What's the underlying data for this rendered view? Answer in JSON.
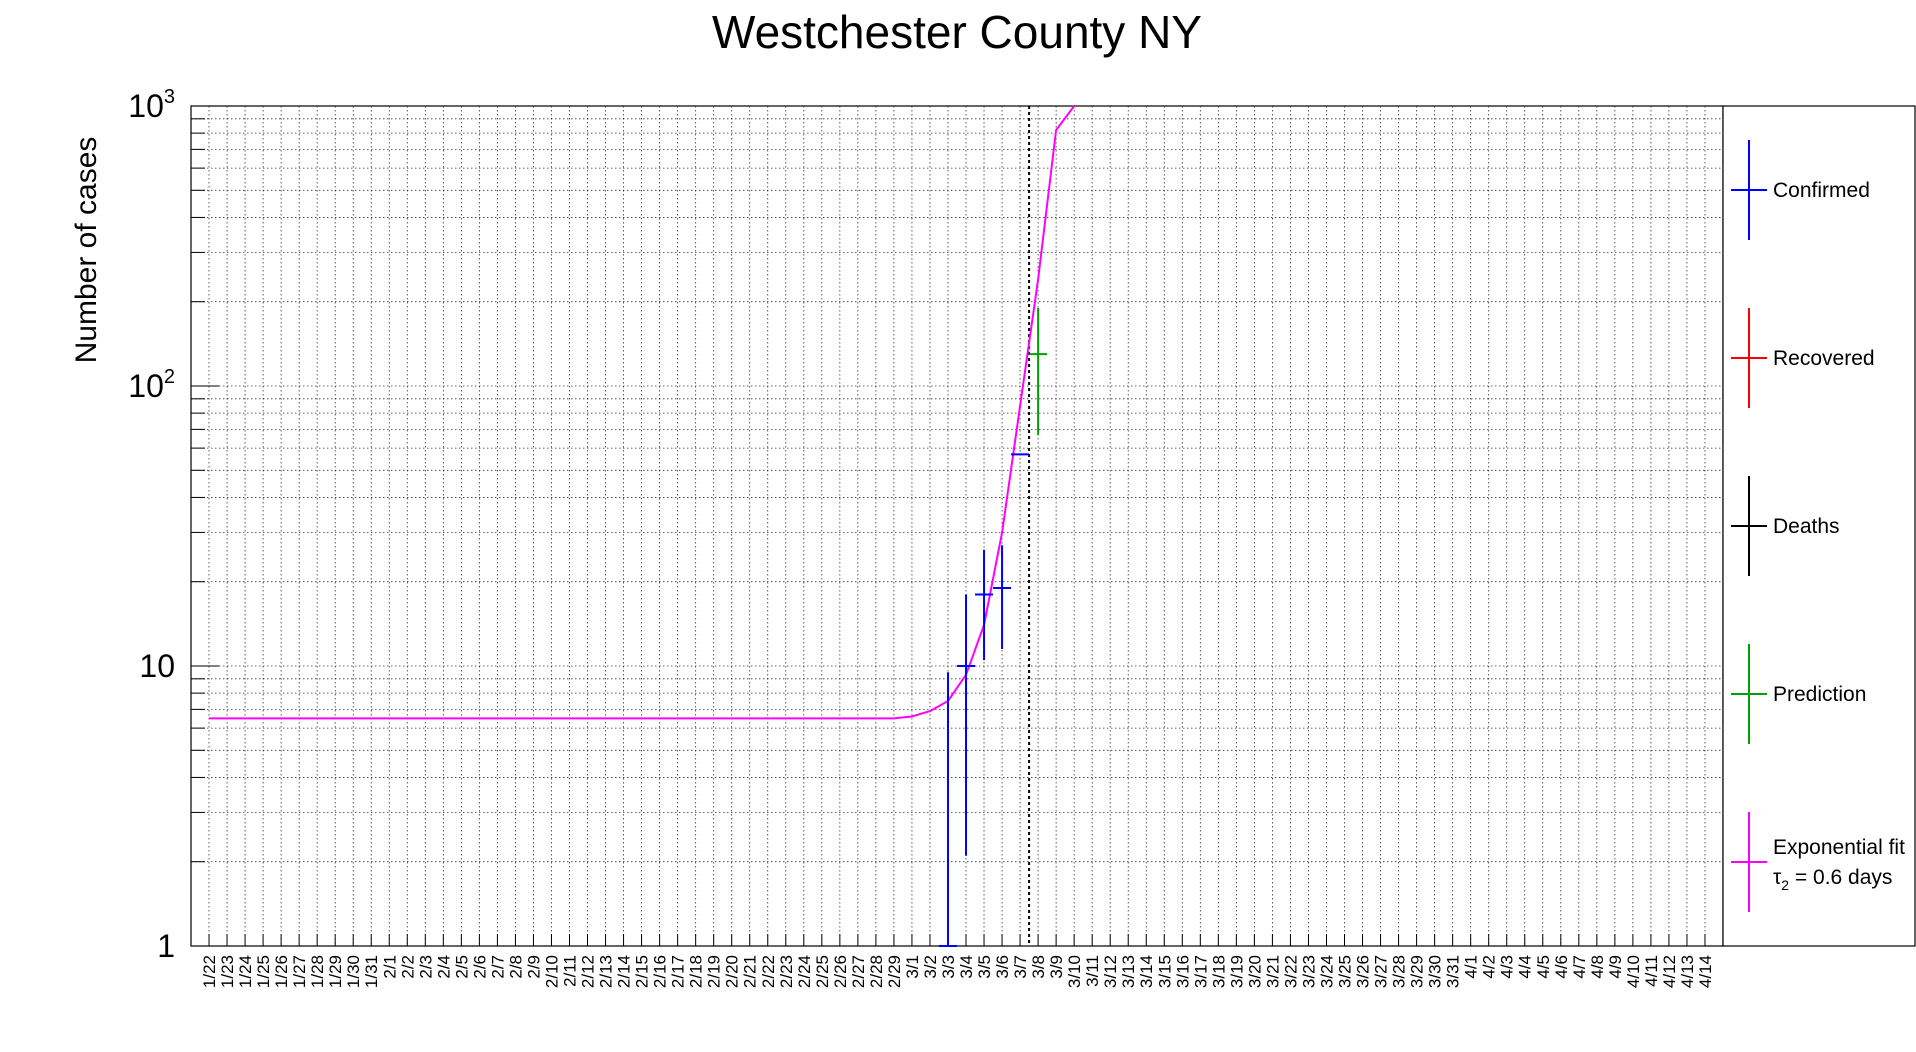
{
  "chart_data": {
    "type": "scatter",
    "title": "Westchester County NY",
    "ylabel": "Number of cases",
    "xlabel": "",
    "yscale": "log",
    "ylim": [
      1,
      1000
    ],
    "y_ticks": [
      {
        "value": 1,
        "base": "1",
        "exp": ""
      },
      {
        "value": 10,
        "base": "10",
        "exp": ""
      },
      {
        "value": 100,
        "base": "10",
        "exp": "2"
      },
      {
        "value": 1000,
        "base": "10",
        "exp": "3"
      }
    ],
    "grid": true,
    "legend_position": "right",
    "categories": [
      "1/22",
      "1/23",
      "1/24",
      "1/25",
      "1/26",
      "1/27",
      "1/28",
      "1/29",
      "1/30",
      "1/31",
      "2/1",
      "2/2",
      "2/3",
      "2/4",
      "2/5",
      "2/6",
      "2/7",
      "2/8",
      "2/9",
      "2/10",
      "2/11",
      "2/12",
      "2/13",
      "2/14",
      "2/15",
      "2/16",
      "2/17",
      "2/18",
      "2/19",
      "2/20",
      "2/21",
      "2/22",
      "2/23",
      "2/24",
      "2/25",
      "2/26",
      "2/27",
      "2/28",
      "2/29",
      "3/1",
      "3/2",
      "3/3",
      "3/4",
      "3/5",
      "3/6",
      "3/7",
      "3/8",
      "3/9",
      "3/10",
      "3/11",
      "3/12",
      "3/13",
      "3/14",
      "3/15",
      "3/16",
      "3/17",
      "3/18",
      "3/19",
      "3/20",
      "3/21",
      "3/22",
      "3/23",
      "3/24",
      "3/25",
      "3/26",
      "3/27",
      "3/28",
      "3/29",
      "3/30",
      "3/31",
      "4/1",
      "4/2",
      "4/3",
      "4/4",
      "4/5",
      "4/6",
      "4/7",
      "4/8",
      "4/9",
      "4/10",
      "4/11",
      "4/12",
      "4/13",
      "4/14"
    ],
    "vertical_marker": "3/8",
    "series": [
      {
        "name": "Confirmed",
        "color": "#0000ff",
        "points": [
          {
            "x": "3/3",
            "y": 1,
            "lo": 1,
            "hi": 9.5
          },
          {
            "x": "3/4",
            "y": 10,
            "lo": 2.1,
            "hi": 18
          },
          {
            "x": "3/5",
            "y": 18,
            "lo": 10.5,
            "hi": 26
          },
          {
            "x": "3/6",
            "y": 19,
            "lo": 11.5,
            "hi": 27
          },
          {
            "x": "3/7",
            "y": 57,
            "lo": 57,
            "hi": 57
          }
        ]
      },
      {
        "name": "Recovered",
        "color": "#ff0000",
        "points": []
      },
      {
        "name": "Deaths",
        "color": "#000000",
        "points": []
      },
      {
        "name": "Prediction",
        "color": "#00a000",
        "points": [
          {
            "x": "3/8",
            "y": 130,
            "lo": 67,
            "hi": 190
          }
        ]
      }
    ],
    "fit": {
      "name": "Exponential fit",
      "tau_label": "τ",
      "tau_sub": "2",
      "tau_text": " = 0.6 days",
      "color": "#ff00ff",
      "baseline": 6.5,
      "points": [
        {
          "x": "1/22",
          "y": 6.5
        },
        {
          "x": "2/29",
          "y": 6.5
        },
        {
          "x": "3/1",
          "y": 6.6
        },
        {
          "x": "3/2",
          "y": 6.9
        },
        {
          "x": "3/3",
          "y": 7.5
        },
        {
          "x": "3/4",
          "y": 9.3
        },
        {
          "x": "3/5",
          "y": 14
        },
        {
          "x": "3/6",
          "y": 30
        },
        {
          "x": "3/7",
          "y": 85
        },
        {
          "x": "3/8",
          "y": 240
        },
        {
          "x": "3/9",
          "y": 820
        },
        {
          "x": "3/10",
          "y": 1000
        }
      ]
    }
  }
}
